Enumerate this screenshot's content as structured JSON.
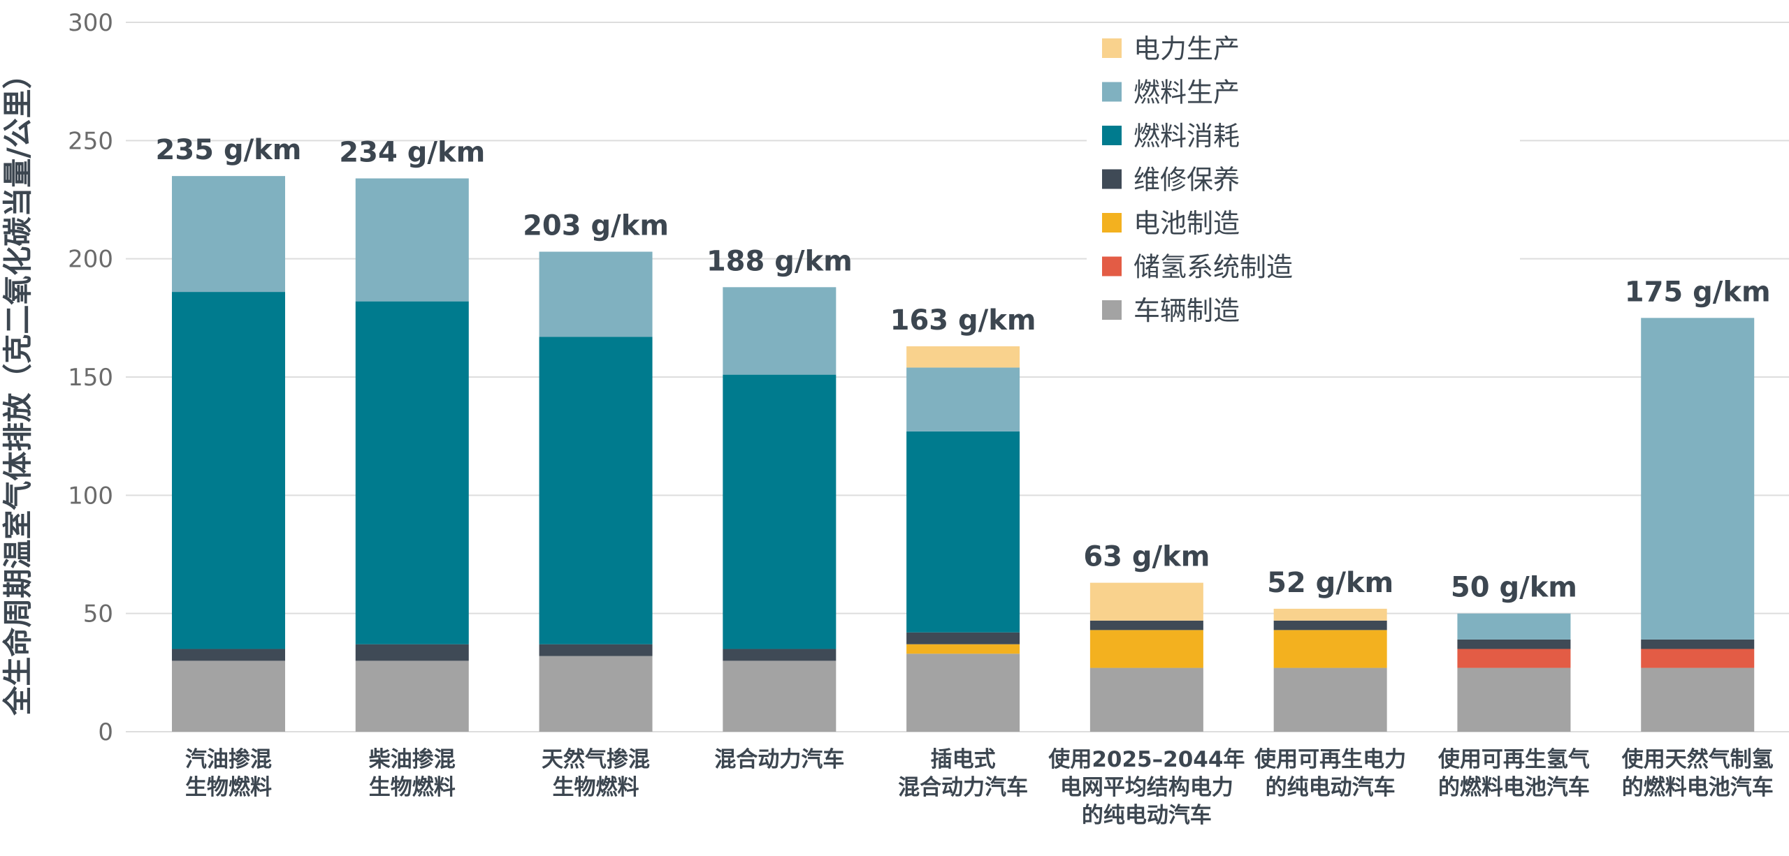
{
  "chart_data": {
    "type": "bar",
    "stacked": true,
    "ylabel": "全生命周期温室气体排放（克二氧化碳当量/公里）",
    "ylim": [
      0,
      300
    ],
    "yticks": [
      0,
      50,
      100,
      150,
      200,
      250,
      300
    ],
    "grid": true,
    "legend_position": "top-right",
    "categories": [
      [
        "汽油掺混",
        "生物燃料"
      ],
      [
        "柴油掺混",
        "生物燃料"
      ],
      [
        "天然气掺混",
        "生物燃料"
      ],
      [
        "混合动力汽车"
      ],
      [
        "插电式",
        "混合动力汽车"
      ],
      [
        "使用2025–2044年",
        "电网平均结构电力",
        "的纯电动汽车"
      ],
      [
        "使用可再生电力",
        "的纯电动汽车"
      ],
      [
        "使用可再生氢气",
        "的燃料电池汽车"
      ],
      [
        "使用天然气制氢",
        "的燃料电池汽车"
      ]
    ],
    "totals": [
      "235 g/km",
      "234 g/km",
      "203 g/km",
      "188 g/km",
      "163 g/km",
      "63 g/km",
      "52 g/km",
      "50 g/km",
      "175 g/km"
    ],
    "series": [
      {
        "name": "车辆制造",
        "color": "#a3a3a3",
        "values": [
          30,
          30,
          32,
          30,
          33,
          27,
          27,
          27,
          27
        ]
      },
      {
        "name": "储氢系统制造",
        "color": "#e35c45",
        "values": [
          0,
          0,
          0,
          0,
          0,
          0,
          0,
          8,
          8
        ]
      },
      {
        "name": "电池制造",
        "color": "#f3b11f",
        "values": [
          0,
          0,
          0,
          0,
          4,
          16,
          16,
          0,
          0
        ]
      },
      {
        "name": "维修保养",
        "color": "#3f4a56",
        "values": [
          5,
          7,
          5,
          5,
          5,
          4,
          4,
          4,
          4
        ]
      },
      {
        "name": "燃料消耗",
        "color": "#007b8e",
        "values": [
          151,
          145,
          130,
          116,
          85,
          0,
          0,
          0,
          0
        ]
      },
      {
        "name": "燃料生产",
        "color": "#80b1c0",
        "values": [
          49,
          52,
          36,
          37,
          27,
          0,
          0,
          11,
          136
        ]
      },
      {
        "name": "电力生产",
        "color": "#f9d28d",
        "values": [
          0,
          0,
          0,
          0,
          9,
          16,
          5,
          0,
          0
        ]
      }
    ],
    "legend_order": [
      "电力生产",
      "燃料生产",
      "燃料消耗",
      "维修保养",
      "电池制造",
      "储氢系统制造",
      "车辆制造"
    ]
  }
}
